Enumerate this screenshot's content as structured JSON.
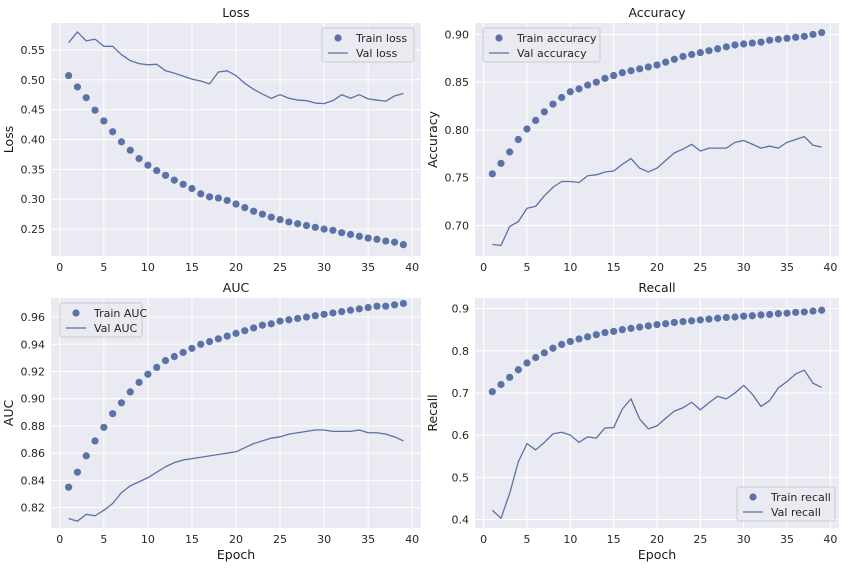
{
  "colors": {
    "series": "#5a72a6",
    "panel_bg": "#eaeaf2",
    "grid": "#ffffff"
  },
  "chart_data": [
    {
      "type": "line",
      "title": "Loss",
      "xlabel": "",
      "ylabel": "Loss",
      "xlim": [
        -1,
        41
      ],
      "ylim": [
        0.205,
        0.595
      ],
      "xticks": [
        0,
        5,
        10,
        15,
        20,
        25,
        30,
        35,
        40
      ],
      "yticks": [
        0.25,
        0.3,
        0.35,
        0.4,
        0.45,
        0.5,
        0.55
      ],
      "ytick_labels": [
        "0.25",
        "0.30",
        "0.35",
        "0.40",
        "0.45",
        "0.50",
        "0.55"
      ],
      "legend_position": "top-right",
      "grid": true,
      "x": [
        1,
        2,
        3,
        4,
        5,
        6,
        7,
        8,
        9,
        10,
        11,
        12,
        13,
        14,
        15,
        16,
        17,
        18,
        19,
        20,
        21,
        22,
        23,
        24,
        25,
        26,
        27,
        28,
        29,
        30,
        31,
        32,
        33,
        34,
        35,
        36,
        37,
        38,
        39
      ],
      "series": [
        {
          "name": "Train loss",
          "style": "markers",
          "values": [
            0.507,
            0.488,
            0.47,
            0.449,
            0.431,
            0.413,
            0.396,
            0.382,
            0.368,
            0.357,
            0.348,
            0.34,
            0.332,
            0.325,
            0.318,
            0.309,
            0.304,
            0.302,
            0.298,
            0.292,
            0.286,
            0.28,
            0.275,
            0.27,
            0.266,
            0.262,
            0.259,
            0.256,
            0.253,
            0.25,
            0.248,
            0.244,
            0.241,
            0.238,
            0.235,
            0.233,
            0.23,
            0.228,
            0.224
          ]
        },
        {
          "name": "Val loss",
          "style": "line",
          "values": [
            0.562,
            0.58,
            0.565,
            0.568,
            0.556,
            0.556,
            0.542,
            0.532,
            0.527,
            0.525,
            0.526,
            0.515,
            0.511,
            0.506,
            0.501,
            0.498,
            0.493,
            0.513,
            0.515,
            0.507,
            0.494,
            0.484,
            0.476,
            0.469,
            0.475,
            0.469,
            0.466,
            0.465,
            0.461,
            0.46,
            0.465,
            0.475,
            0.469,
            0.475,
            0.468,
            0.466,
            0.464,
            0.473,
            0.477
          ]
        }
      ]
    },
    {
      "type": "line",
      "title": "Accuracy",
      "xlabel": "",
      "ylabel": "Accuracy",
      "xlim": [
        -1,
        41
      ],
      "ylim": [
        0.668,
        0.912
      ],
      "xticks": [
        0,
        5,
        10,
        15,
        20,
        25,
        30,
        35,
        40
      ],
      "yticks": [
        0.7,
        0.75,
        0.8,
        0.85,
        0.9
      ],
      "ytick_labels": [
        "0.70",
        "0.75",
        "0.80",
        "0.85",
        "0.90"
      ],
      "legend_position": "top-left",
      "grid": true,
      "x": [
        1,
        2,
        3,
        4,
        5,
        6,
        7,
        8,
        9,
        10,
        11,
        12,
        13,
        14,
        15,
        16,
        17,
        18,
        19,
        20,
        21,
        22,
        23,
        24,
        25,
        26,
        27,
        28,
        29,
        30,
        31,
        32,
        33,
        34,
        35,
        36,
        37,
        38,
        39
      ],
      "series": [
        {
          "name": "Train accuracy",
          "style": "markers",
          "values": [
            0.754,
            0.765,
            0.777,
            0.79,
            0.801,
            0.81,
            0.819,
            0.827,
            0.834,
            0.84,
            0.843,
            0.847,
            0.85,
            0.854,
            0.857,
            0.86,
            0.862,
            0.864,
            0.866,
            0.868,
            0.871,
            0.874,
            0.877,
            0.879,
            0.881,
            0.883,
            0.885,
            0.887,
            0.889,
            0.89,
            0.891,
            0.892,
            0.894,
            0.895,
            0.896,
            0.897,
            0.898,
            0.9,
            0.902
          ]
        },
        {
          "name": "Val accuracy",
          "style": "line",
          "values": [
            0.68,
            0.679,
            0.699,
            0.704,
            0.718,
            0.72,
            0.731,
            0.74,
            0.746,
            0.746,
            0.745,
            0.752,
            0.753,
            0.756,
            0.757,
            0.764,
            0.77,
            0.76,
            0.756,
            0.76,
            0.768,
            0.776,
            0.78,
            0.785,
            0.778,
            0.781,
            0.781,
            0.781,
            0.787,
            0.789,
            0.785,
            0.781,
            0.783,
            0.781,
            0.787,
            0.79,
            0.793,
            0.784,
            0.782
          ]
        }
      ]
    },
    {
      "type": "line",
      "title": "AUC",
      "xlabel": "Epoch",
      "ylabel": "AUC",
      "xlim": [
        -1,
        41
      ],
      "ylim": [
        0.805,
        0.974
      ],
      "xticks": [
        0,
        5,
        10,
        15,
        20,
        25,
        30,
        35,
        40
      ],
      "yticks": [
        0.82,
        0.84,
        0.86,
        0.88,
        0.9,
        0.92,
        0.94,
        0.96
      ],
      "ytick_labels": [
        "0.82",
        "0.84",
        "0.86",
        "0.88",
        "0.90",
        "0.92",
        "0.94",
        "0.96"
      ],
      "legend_position": "top-left",
      "grid": true,
      "x": [
        1,
        2,
        3,
        4,
        5,
        6,
        7,
        8,
        9,
        10,
        11,
        12,
        13,
        14,
        15,
        16,
        17,
        18,
        19,
        20,
        21,
        22,
        23,
        24,
        25,
        26,
        27,
        28,
        29,
        30,
        31,
        32,
        33,
        34,
        35,
        36,
        37,
        38,
        39
      ],
      "series": [
        {
          "name": "Train AUC",
          "style": "markers",
          "values": [
            0.835,
            0.846,
            0.858,
            0.869,
            0.879,
            0.889,
            0.897,
            0.905,
            0.912,
            0.918,
            0.923,
            0.928,
            0.931,
            0.934,
            0.937,
            0.94,
            0.942,
            0.944,
            0.946,
            0.948,
            0.95,
            0.952,
            0.954,
            0.955,
            0.957,
            0.958,
            0.959,
            0.96,
            0.961,
            0.962,
            0.963,
            0.964,
            0.965,
            0.966,
            0.967,
            0.968,
            0.968,
            0.969,
            0.97
          ]
        },
        {
          "name": "Val AUC",
          "style": "line",
          "values": [
            0.812,
            0.81,
            0.815,
            0.814,
            0.818,
            0.823,
            0.831,
            0.836,
            0.839,
            0.842,
            0.846,
            0.85,
            0.853,
            0.855,
            0.856,
            0.857,
            0.858,
            0.859,
            0.86,
            0.861,
            0.864,
            0.867,
            0.869,
            0.871,
            0.872,
            0.874,
            0.875,
            0.876,
            0.877,
            0.877,
            0.876,
            0.876,
            0.876,
            0.877,
            0.875,
            0.875,
            0.874,
            0.872,
            0.869
          ]
        }
      ]
    },
    {
      "type": "line",
      "title": "Recall",
      "xlabel": "Epoch",
      "ylabel": "Recall",
      "xlim": [
        -1,
        41
      ],
      "ylim": [
        0.38,
        0.925
      ],
      "xticks": [
        0,
        5,
        10,
        15,
        20,
        25,
        30,
        35,
        40
      ],
      "yticks": [
        0.4,
        0.5,
        0.6,
        0.7,
        0.8,
        0.9
      ],
      "ytick_labels": [
        "0.4",
        "0.5",
        "0.6",
        "0.7",
        "0.8",
        "0.9"
      ],
      "legend_position": "bottom-right",
      "grid": true,
      "x": [
        1,
        2,
        3,
        4,
        5,
        6,
        7,
        8,
        9,
        10,
        11,
        12,
        13,
        14,
        15,
        16,
        17,
        18,
        19,
        20,
        21,
        22,
        23,
        24,
        25,
        26,
        27,
        28,
        29,
        30,
        31,
        32,
        33,
        34,
        35,
        36,
        37,
        38,
        39
      ],
      "series": [
        {
          "name": "Train recall",
          "style": "markers",
          "values": [
            0.703,
            0.72,
            0.737,
            0.755,
            0.771,
            0.784,
            0.795,
            0.806,
            0.815,
            0.822,
            0.828,
            0.833,
            0.838,
            0.843,
            0.846,
            0.85,
            0.853,
            0.856,
            0.859,
            0.862,
            0.864,
            0.867,
            0.869,
            0.871,
            0.873,
            0.875,
            0.877,
            0.879,
            0.88,
            0.882,
            0.883,
            0.885,
            0.886,
            0.888,
            0.889,
            0.891,
            0.892,
            0.894,
            0.896
          ]
        },
        {
          "name": "Val recall",
          "style": "line",
          "values": [
            0.422,
            0.403,
            0.462,
            0.537,
            0.58,
            0.565,
            0.583,
            0.603,
            0.607,
            0.6,
            0.583,
            0.596,
            0.593,
            0.617,
            0.618,
            0.662,
            0.686,
            0.638,
            0.615,
            0.622,
            0.64,
            0.657,
            0.665,
            0.678,
            0.66,
            0.677,
            0.692,
            0.686,
            0.7,
            0.718,
            0.697,
            0.668,
            0.682,
            0.712,
            0.727,
            0.745,
            0.754,
            0.723,
            0.713
          ]
        }
      ]
    }
  ]
}
